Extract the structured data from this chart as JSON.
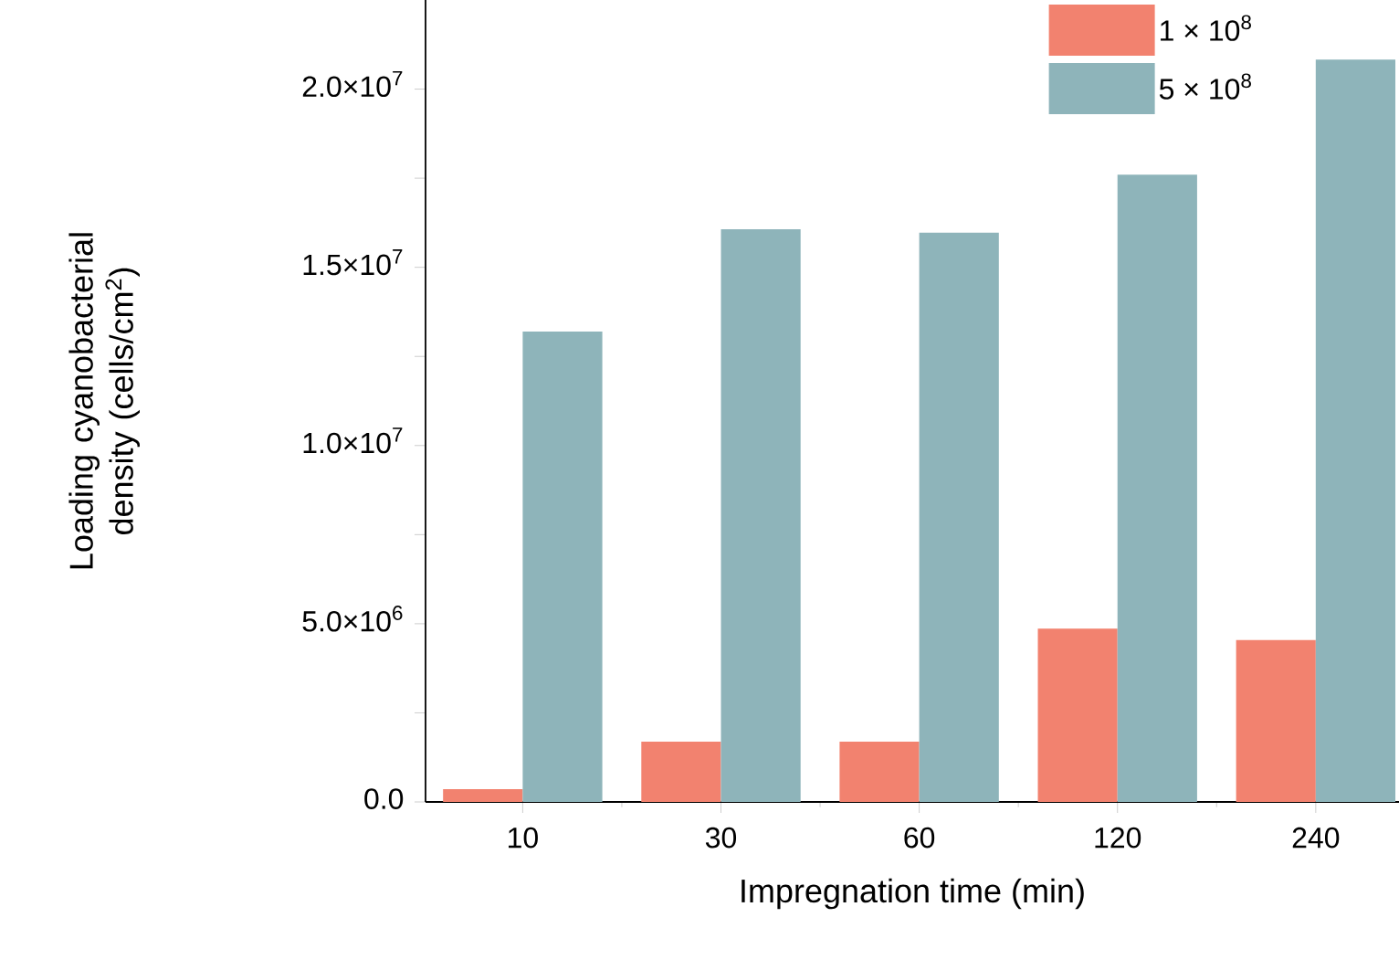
{
  "chart_data": {
    "type": "bar",
    "xlabel": "Impregnation time (min)",
    "ylabel": "Loading cyanobacterial density (cells/cm$^{2}$)",
    "categories": [
      "10",
      "30",
      "60",
      "120",
      "240"
    ],
    "series": [
      {
        "name": "1 × 10$^{8}$",
        "color": "#f2826f",
        "values": [
          360000,
          1690000,
          1690000,
          4860000,
          4540000
        ]
      },
      {
        "name": "5 × 10$^{8}$",
        "color": "#8eb4ba",
        "values": [
          13200000,
          16070000,
          15970000,
          17600000,
          20830000
        ]
      }
    ],
    "ylim": [
      0,
      22500000
    ],
    "yticks": [
      {
        "value": 0,
        "label": "0.0"
      },
      {
        "value": 2500000,
        "label": null
      },
      {
        "value": 5000000,
        "label": "5.0×10$^{6}$"
      },
      {
        "value": 7500000,
        "label": null
      },
      {
        "value": 10000000,
        "label": "1.0×10$^{7}$"
      },
      {
        "value": 12500000,
        "label": null
      },
      {
        "value": 15000000,
        "label": "1.5×10$^{7}$"
      },
      {
        "value": 17500000,
        "label": null
      },
      {
        "value": 20000000,
        "label": "2.0×10$^{7}$"
      }
    ],
    "legend": "top right",
    "grid": false
  }
}
